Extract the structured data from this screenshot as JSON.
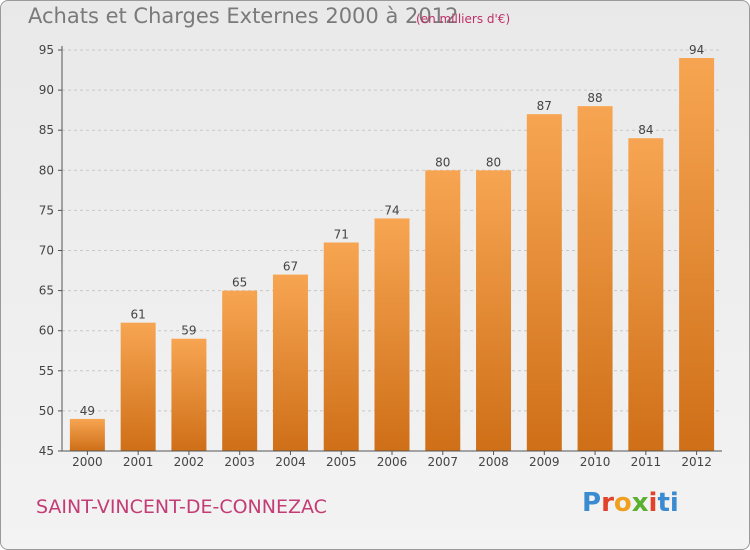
{
  "title": "Achats et Charges Externes 2000 à 2012",
  "subtitle": "(en milliers d'€)",
  "commune": "SAINT-VINCENT-DE-CONNEZAC",
  "brand": {
    "text": "Proxiti",
    "letters": [
      "P",
      "r",
      "o",
      "x",
      "i",
      "ti"
    ]
  },
  "colors": {
    "bar_top": "#f7a552",
    "bar_bottom": "#cf6f18",
    "title": "#7a7a7a",
    "commune": "#c43c75"
  },
  "chart_data": {
    "type": "bar",
    "categories": [
      "2000",
      "2001",
      "2002",
      "2003",
      "2004",
      "2005",
      "2006",
      "2007",
      "2008",
      "2009",
      "2010",
      "2011",
      "2012"
    ],
    "values": [
      49,
      61,
      59,
      65,
      67,
      71,
      74,
      80,
      80,
      87,
      88,
      84,
      94
    ],
    "ylim": [
      45,
      95
    ],
    "yticks": [
      45,
      50,
      55,
      60,
      65,
      70,
      75,
      80,
      85,
      90,
      95
    ],
    "grid": true,
    "xlabel": "",
    "ylabel": ""
  }
}
